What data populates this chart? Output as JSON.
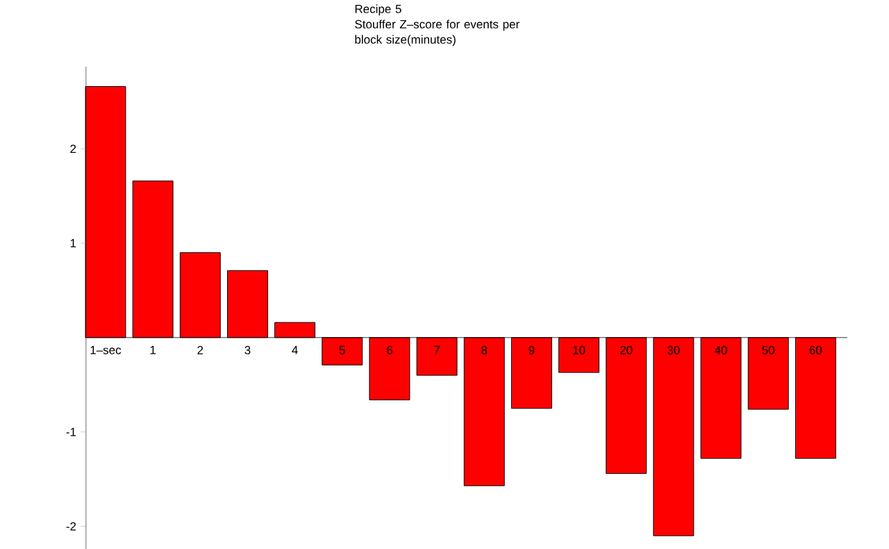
{
  "chart_data": {
    "type": "bar",
    "title": "Recipe 5",
    "subtitle": "Stouffer Z–score for events per block  size(minutes)",
    "categories": [
      "1–sec",
      "1",
      "2",
      "3",
      "4",
      "5",
      "6",
      "7",
      "8",
      "9",
      "10",
      "20",
      "30",
      "40",
      "50",
      "60"
    ],
    "values": [
      2.66,
      1.66,
      0.9,
      0.71,
      0.16,
      -0.29,
      -0.66,
      -0.4,
      -1.57,
      -0.75,
      -0.37,
      -1.44,
      -2.1,
      -1.28,
      -0.76,
      -1.28
    ],
    "color": "#ff0000",
    "ylim": [
      -2.24,
      2.87
    ],
    "yticks": [
      -2,
      -1,
      1,
      2
    ]
  }
}
